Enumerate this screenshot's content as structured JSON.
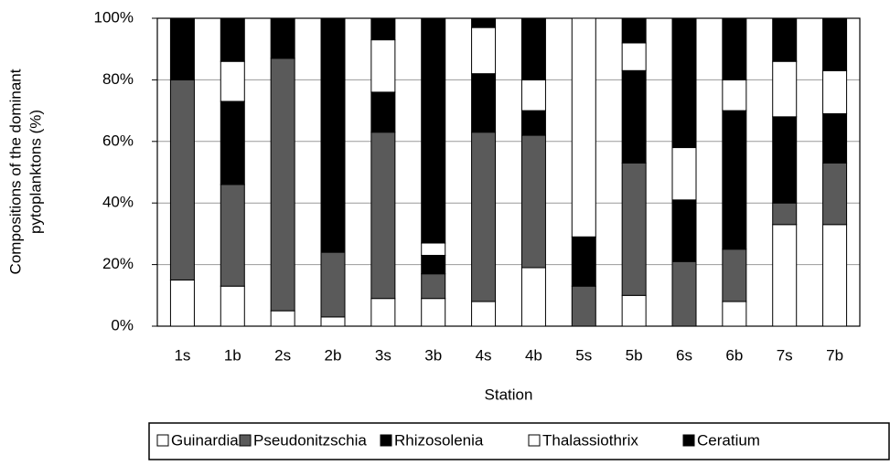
{
  "chart_data": {
    "type": "stacked_bar",
    "y_label": [
      "Compositions of the dominant",
      "pytoplanktons (%)"
    ],
    "x_label": "Station",
    "categories": [
      "1s",
      "1b",
      "2s",
      "2b",
      "3s",
      "3b",
      "4s",
      "4b",
      "5s",
      "5b",
      "6s",
      "6b",
      "7s",
      "7b"
    ],
    "series": [
      {
        "name": "Guinardia",
        "color": "#ffffff",
        "values": [
          15,
          13,
          5,
          3,
          9,
          9,
          8,
          19,
          0,
          10,
          0,
          8,
          33,
          33
        ]
      },
      {
        "name": "Pseudonitzschia",
        "color": "#5a5a5a",
        "values": [
          65,
          33,
          82,
          21,
          54,
          8,
          55,
          43,
          13,
          43,
          21,
          17,
          7,
          20
        ]
      },
      {
        "name": "Rhizosolenia",
        "color": "#000000",
        "values": [
          20,
          27,
          13,
          76,
          13,
          6,
          19,
          8,
          16,
          30,
          20,
          45,
          28,
          16
        ]
      },
      {
        "name": "Thalassiothrix",
        "color": "#ffffff",
        "values": [
          0,
          13,
          0,
          0,
          17,
          4,
          15,
          10,
          71,
          9,
          17,
          10,
          18,
          14
        ]
      },
      {
        "name": "Ceratium",
        "color": "#000000",
        "values": [
          0,
          14,
          0,
          0,
          7,
          73,
          3,
          20,
          0,
          8,
          42,
          20,
          14,
          17
        ]
      }
    ],
    "ylim": [
      0,
      100
    ],
    "yticks": [
      {
        "value": 0,
        "label": "0%"
      },
      {
        "value": 20,
        "label": "20%"
      },
      {
        "value": 40,
        "label": "40%"
      },
      {
        "value": 60,
        "label": "60%"
      },
      {
        "value": 80,
        "label": "80%"
      },
      {
        "value": 100,
        "label": "100%"
      }
    ],
    "grid": true
  }
}
